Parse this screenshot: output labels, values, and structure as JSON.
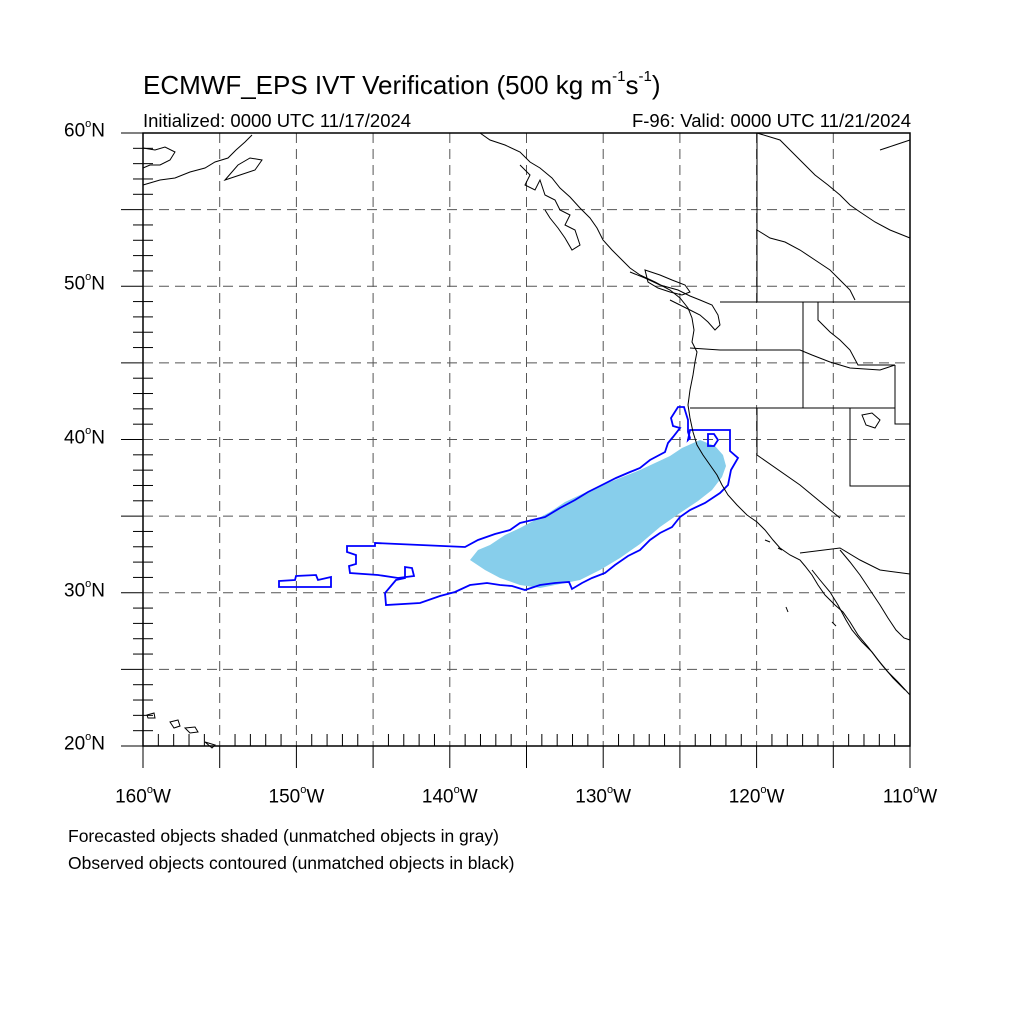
{
  "figure": {
    "title_main": "ECMWF_EPS IVT Verification (500 kg m",
    "title_exp1": "-1",
    "title_mid": "s",
    "title_exp2": "-1",
    "title_end": ")",
    "initialized": "Initialized: 0000 UTC 11/17/2024",
    "valid": "F-96: Valid: 0000 UTC 11/21/2024",
    "note_forecast": "Forecasted objects shaded (unmatched objects in gray)",
    "note_observed": "Observed objects contoured (unmatched objects in black)"
  },
  "map": {
    "degree_symbol": "o",
    "lat_ticks": [
      {
        "value": 60,
        "num": "60",
        "hemi": "N"
      },
      {
        "value": 50,
        "num": "50",
        "hemi": "N"
      },
      {
        "value": 40,
        "num": "40",
        "hemi": "N"
      },
      {
        "value": 30,
        "num": "30",
        "hemi": "N"
      },
      {
        "value": 20,
        "num": "20",
        "hemi": "N"
      }
    ],
    "lon_ticks": [
      {
        "value": -160,
        "num": "160",
        "hemi": "W"
      },
      {
        "value": -150,
        "num": "150",
        "hemi": "W"
      },
      {
        "value": -140,
        "num": "140",
        "hemi": "W"
      },
      {
        "value": -130,
        "num": "130",
        "hemi": "W"
      },
      {
        "value": -120,
        "num": "120",
        "hemi": "W"
      },
      {
        "value": -110,
        "num": "110",
        "hemi": "W"
      }
    ],
    "lat_range": [
      20,
      60
    ],
    "lon_range": [
      -160,
      -110
    ],
    "grid_step": 5,
    "colors": {
      "forecast_fill": "#87ceeb",
      "observed_contour": "#0000ff",
      "coastline": "#000000",
      "grid": "#555555"
    }
  }
}
